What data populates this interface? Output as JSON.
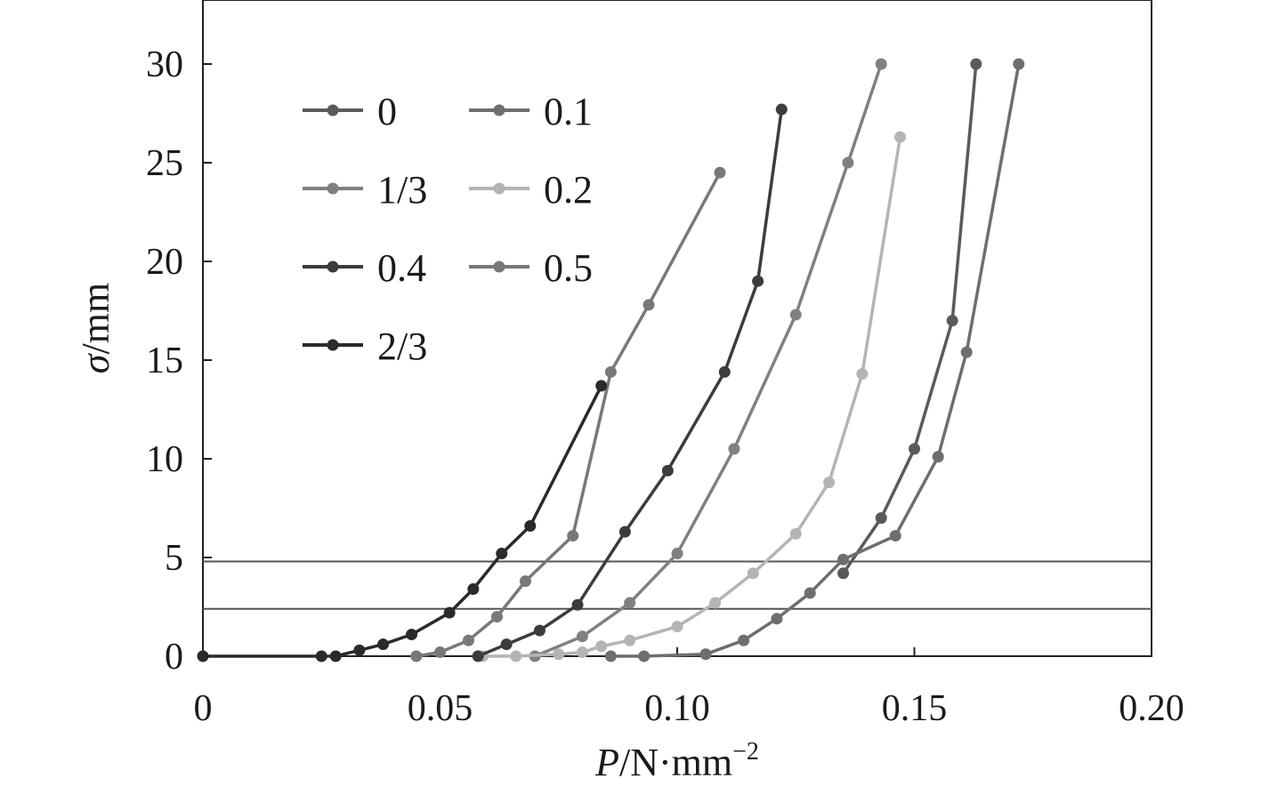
{
  "chart_data": {
    "type": "line",
    "xlabel": {
      "italic": "P",
      "rest": "/N·mm",
      "sup": "−2"
    },
    "ylabel": {
      "italic": "σ",
      "rest": "/mm"
    },
    "xlim": [
      0,
      0.2
    ],
    "ylim": [
      0,
      30
    ],
    "x_ticks": [
      0,
      0.05,
      0.1,
      0.15,
      0.2
    ],
    "x_tick_labels": [
      "0",
      "0.05",
      "0.10",
      "0.15",
      "0.20"
    ],
    "y_ticks": [
      0,
      5,
      10,
      15,
      20,
      25,
      30
    ],
    "y_tick_labels": [
      "0",
      "5",
      "10",
      "15",
      "20",
      "25",
      "30"
    ],
    "reference_lines_y": [
      4.8,
      2.4
    ],
    "legend_position": "top-left",
    "series": [
      {
        "name": "0",
        "color": "#5a5a5a",
        "x": [
          0.135,
          0.143,
          0.15,
          0.158,
          0.163
        ],
        "y": [
          4.2,
          7.0,
          10.5,
          17.0,
          30.0
        ]
      },
      {
        "name": "0.1",
        "color": "#6e6e6e",
        "x": [
          0.086,
          0.093,
          0.106,
          0.114,
          0.121,
          0.128,
          0.135,
          0.146,
          0.155,
          0.161,
          0.172
        ],
        "y": [
          0.0,
          0.0,
          0.1,
          0.8,
          1.9,
          3.2,
          4.9,
          6.1,
          10.1,
          15.4,
          30.0
        ]
      },
      {
        "name": "1/3",
        "color": "#808080",
        "x": [
          0.07,
          0.08,
          0.09,
          0.1,
          0.112,
          0.125,
          0.136,
          0.143
        ],
        "y": [
          0.0,
          1.0,
          2.7,
          5.2,
          10.5,
          17.3,
          25.0,
          30.0
        ]
      },
      {
        "name": "0.2",
        "color": "#b4b4b4",
        "x": [
          0.059,
          0.066,
          0.075,
          0.08,
          0.084,
          0.09,
          0.1,
          0.108,
          0.116,
          0.125,
          0.132,
          0.139,
          0.147
        ],
        "y": [
          0.0,
          0.0,
          0.1,
          0.2,
          0.5,
          0.8,
          1.5,
          2.7,
          4.2,
          6.2,
          8.8,
          14.3,
          26.3
        ]
      },
      {
        "name": "0.4",
        "color": "#3c3c3c",
        "x": [
          0.058,
          0.064,
          0.071,
          0.079,
          0.089,
          0.098,
          0.11,
          0.117,
          0.122
        ],
        "y": [
          0.0,
          0.6,
          1.3,
          2.6,
          6.3,
          9.4,
          14.4,
          19.0,
          27.7
        ]
      },
      {
        "name": "0.5",
        "color": "#787878",
        "x": [
          0.045,
          0.05,
          0.056,
          0.062,
          0.068,
          0.078,
          0.086,
          0.094,
          0.109
        ],
        "y": [
          0.0,
          0.2,
          0.8,
          2.0,
          3.8,
          6.1,
          14.4,
          17.8,
          24.5
        ]
      },
      {
        "name": "2/3",
        "color": "#2a2a2a",
        "x": [
          0.0,
          0.025,
          0.028,
          0.033,
          0.038,
          0.044,
          0.052,
          0.057,
          0.063,
          0.069,
          0.084
        ],
        "y": [
          0.0,
          0.0,
          0.0,
          0.3,
          0.6,
          1.1,
          2.2,
          3.4,
          5.2,
          6.6,
          13.7
        ]
      }
    ]
  }
}
